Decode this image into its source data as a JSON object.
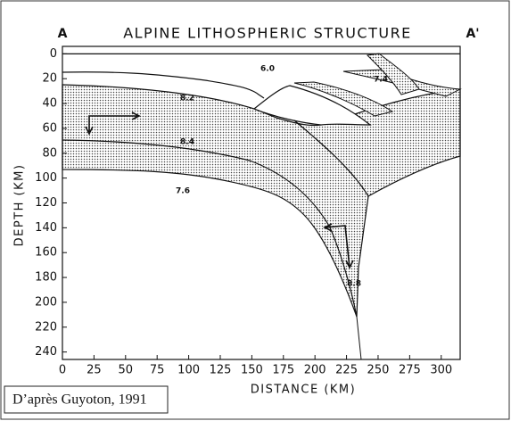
{
  "chart_data": {
    "type": "cross-section",
    "title": "ALPINE LITHOSPHERIC STRUCTURE",
    "section_start": "A",
    "section_end": "A'",
    "xlabel": "DISTANCE (KM)",
    "ylabel": "DEPTH (KM)",
    "xlim": [
      0,
      315
    ],
    "ylim": [
      -6,
      246
    ],
    "y_inverted": true,
    "xticks": [
      0,
      25,
      50,
      75,
      100,
      125,
      150,
      175,
      200,
      225,
      250,
      275,
      300
    ],
    "yticks": [
      0,
      20,
      40,
      60,
      80,
      100,
      120,
      140,
      160,
      180,
      200,
      220,
      240
    ],
    "annotations": [
      "6.0",
      "7.4",
      "8.2",
      "8.4",
      "7.6",
      "8.8"
    ],
    "source": "D’après Guyoton, 1991"
  }
}
